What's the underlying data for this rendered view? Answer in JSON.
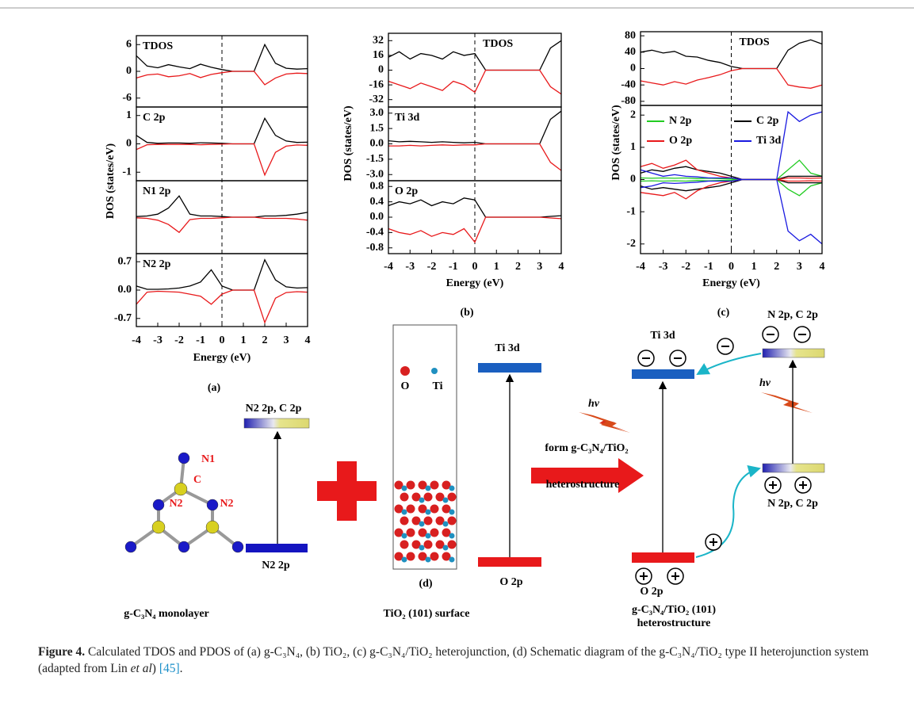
{
  "chart_data": [
    {
      "type": "line",
      "label": "(a)",
      "xlabel": "Energy (eV)",
      "ylabel": "DOS (states/eV)",
      "x": [
        -4,
        -3.5,
        -3,
        -2.5,
        -2,
        -1.5,
        -1,
        -0.5,
        0,
        0.5,
        1,
        1.5,
        2,
        2.5,
        3,
        3.5,
        4
      ],
      "xlim": [
        -4,
        4
      ],
      "xticks": [
        -4,
        -3,
        -2,
        -1,
        0,
        1,
        2,
        3,
        4
      ],
      "vline": 0,
      "panels": [
        {
          "title": "TDOS",
          "ylim": [
            -8,
            8
          ],
          "yticks": [
            6,
            0,
            -6
          ],
          "series": [
            {
              "color": "#000000",
              "values": [
                3.5,
                1.2,
                0.8,
                1.5,
                1.0,
                0.6,
                1.6,
                0.9,
                0.4,
                0,
                0,
                0,
                6,
                1.8,
                0.7,
                0.5,
                0.6
              ]
            },
            {
              "color": "#e8191b",
              "values": [
                -1.5,
                -0.8,
                -0.6,
                -1.2,
                -1.0,
                -0.5,
                -1.4,
                -0.7,
                -0.3,
                0,
                0,
                0,
                -3,
                -1.5,
                -0.6,
                -0.4,
                -0.5
              ]
            }
          ]
        },
        {
          "title": "C 2p",
          "ylim": [
            -1.3,
            1.3
          ],
          "yticks": [
            1,
            0,
            -1
          ],
          "series": [
            {
              "color": "#000000",
              "values": [
                0.3,
                0.05,
                0.02,
                0.03,
                0.03,
                0.02,
                0.04,
                0.03,
                0.02,
                0,
                0,
                0,
                0.9,
                0.3,
                0.1,
                0.05,
                0.06
              ]
            },
            {
              "color": "#e8191b",
              "values": [
                -0.2,
                -0.03,
                -0.02,
                -0.02,
                -0.02,
                -0.02,
                -0.03,
                -0.02,
                -0.01,
                0,
                0,
                0,
                -1.1,
                -0.3,
                -0.08,
                -0.04,
                -0.05
              ]
            }
          ]
        },
        {
          "title": "N1 2p",
          "ylim": [
            -0.6,
            0.6
          ],
          "yticks": [],
          "series": [
            {
              "color": "#000000",
              "values": [
                0.01,
                0.02,
                0.05,
                0.15,
                0.35,
                0.05,
                0.02,
                0.02,
                0.01,
                0,
                0,
                0,
                0.02,
                0.02,
                0.03,
                0.05,
                0.08
              ]
            },
            {
              "color": "#e8191b",
              "values": [
                -0.01,
                -0.02,
                -0.05,
                -0.12,
                -0.25,
                -0.04,
                -0.02,
                -0.02,
                -0.01,
                0,
                0,
                0,
                -0.02,
                -0.02,
                -0.02,
                -0.03,
                -0.05
              ]
            }
          ]
        },
        {
          "title": "N2 2p",
          "ylim": [
            -0.9,
            0.9
          ],
          "yticks": [
            0.7,
            {
              "value": 0,
              "label": "0.0"
            },
            -0.7
          ],
          "series": [
            {
              "color": "#000000",
              "values": [
                0.1,
                0.02,
                0.02,
                0.03,
                0.05,
                0.1,
                0.2,
                0.5,
                0.1,
                0,
                0,
                0,
                0.75,
                0.25,
                0.08,
                0.05,
                0.06
              ]
            },
            {
              "color": "#e8191b",
              "values": [
                -0.35,
                -0.05,
                -0.03,
                -0.04,
                -0.05,
                -0.1,
                -0.15,
                -0.35,
                -0.1,
                0,
                0,
                0,
                -0.8,
                -0.2,
                -0.06,
                -0.04,
                -0.05
              ]
            }
          ]
        }
      ]
    },
    {
      "type": "line",
      "label": "(b)",
      "xlabel": "Energy (eV)",
      "ylabel": "DOS (states/eV)",
      "x": [
        -4,
        -3.5,
        -3,
        -2.5,
        -2,
        -1.5,
        -1,
        -0.5,
        0,
        0.5,
        1,
        1.5,
        2,
        2.5,
        3,
        3.5,
        4
      ],
      "xlim": [
        -4,
        4
      ],
      "xticks": [
        -4,
        -3,
        -2,
        -1,
        0,
        1,
        2,
        3,
        4
      ],
      "vline": 0,
      "panels": [
        {
          "title": "TDOS",
          "ylim": [
            -40,
            40
          ],
          "yticks": [
            32,
            16,
            0,
            -16,
            -32
          ],
          "series": [
            {
              "color": "#000000",
              "values": [
                14,
                20,
                12,
                18,
                16,
                12,
                20,
                16,
                18,
                0,
                0,
                0,
                0,
                0,
                0,
                24,
                32
              ]
            },
            {
              "color": "#e8191b",
              "values": [
                -12,
                -16,
                -20,
                -14,
                -18,
                -22,
                -12,
                -16,
                -24,
                0,
                0,
                0,
                0,
                0,
                0,
                -18,
                -26
              ]
            }
          ]
        },
        {
          "title": "Ti 3d",
          "ylim": [
            -3.6,
            3.6
          ],
          "yticks": [
            {
              "value": 3,
              "label": "3.0"
            },
            1.5,
            {
              "value": 0,
              "label": "0.0"
            },
            -1.5,
            {
              "value": -3,
              "label": "-3.0"
            }
          ],
          "series": [
            {
              "color": "#000000",
              "values": [
                0.3,
                0.2,
                0.25,
                0.2,
                0.15,
                0.2,
                0.15,
                0.1,
                0.15,
                0,
                0,
                0,
                0,
                0,
                0,
                2.4,
                3.2
              ]
            },
            {
              "color": "#e8191b",
              "values": [
                -0.2,
                -0.2,
                -0.15,
                -0.2,
                -0.15,
                -0.1,
                -0.15,
                -0.1,
                -0.1,
                0,
                0,
                0,
                0,
                0,
                0,
                -1.8,
                -2.6
              ]
            }
          ]
        },
        {
          "title": "O 2p",
          "ylim": [
            -0.95,
            0.95
          ],
          "yticks": [
            0.8,
            0.4,
            {
              "value": 0,
              "label": "0.0"
            },
            -0.4,
            -0.8
          ],
          "series": [
            {
              "color": "#000000",
              "values": [
                0.3,
                0.4,
                0.35,
                0.45,
                0.3,
                0.4,
                0.35,
                0.5,
                0.45,
                0,
                0,
                0,
                0,
                0,
                0,
                0.02,
                0.04
              ]
            },
            {
              "color": "#e8191b",
              "values": [
                -0.3,
                -0.4,
                -0.45,
                -0.35,
                -0.5,
                -0.4,
                -0.45,
                -0.3,
                -0.65,
                0,
                0,
                0,
                0,
                0,
                0,
                -0.02,
                -0.04
              ]
            }
          ]
        }
      ]
    },
    {
      "type": "line",
      "label": "(c)",
      "xlabel": "Energy (eV)",
      "ylabel": "DOS (states/eV)",
      "x": [
        -4,
        -3.5,
        -3,
        -2.5,
        -2,
        -1.5,
        -1,
        -0.5,
        0,
        0.5,
        1,
        1.5,
        2,
        2.5,
        3,
        3.5,
        4
      ],
      "xlim": [
        -4,
        4
      ],
      "xticks": [
        -4,
        -3,
        -2,
        -1,
        0,
        1,
        2,
        3,
        4
      ],
      "vline": 0,
      "panels": [
        {
          "title": "TDOS",
          "ylim": [
            -90,
            90
          ],
          "yticks": [
            80,
            40,
            0,
            -40,
            -80
          ],
          "series": [
            {
              "color": "#000000",
              "values": [
                40,
                45,
                38,
                42,
                30,
                28,
                20,
                15,
                5,
                0,
                0,
                0,
                0,
                45,
                62,
                70,
                60
              ]
            },
            {
              "color": "#e8191b",
              "values": [
                -30,
                -35,
                -40,
                -32,
                -38,
                -28,
                -22,
                -15,
                -5,
                0,
                0,
                0,
                0,
                -40,
                -45,
                -48,
                -40
              ]
            }
          ]
        },
        {
          "ylim": [
            -2.3,
            2.3
          ],
          "yticks": [
            2,
            1,
            0,
            -1,
            -2
          ],
          "series": [
            {
              "name": "N 2p",
              "color": "#22cc22",
              "values": [
                0.05,
                0.04,
                0.05,
                0.04,
                0.05,
                0.03,
                0.04,
                0.03,
                0.02,
                0,
                0,
                0,
                0,
                0.3,
                0.6,
                0.2,
                0.1
              ]
            },
            {
              "color": "#22cc22",
              "values": [
                -0.05,
                -0.04,
                -0.05,
                -0.04,
                -0.05,
                -0.03,
                -0.04,
                -0.03,
                -0.02,
                0,
                0,
                0,
                0,
                -0.3,
                -0.5,
                -0.2,
                -0.1
              ]
            },
            {
              "name": "C 2p",
              "color": "#000000",
              "values": [
                0.2,
                0.3,
                0.25,
                0.35,
                0.4,
                0.3,
                0.25,
                0.2,
                0.1,
                0,
                0,
                0,
                0,
                0.1,
                0.1,
                0.1,
                0.1
              ]
            },
            {
              "color": "#000000",
              "values": [
                -0.2,
                -0.3,
                -0.25,
                -0.3,
                -0.35,
                -0.3,
                -0.25,
                -0.2,
                -0.1,
                0,
                0,
                0,
                0,
                -0.1,
                -0.1,
                -0.1,
                -0.1
              ]
            },
            {
              "name": "O 2p",
              "color": "#e8191b",
              "values": [
                0.4,
                0.5,
                0.35,
                0.45,
                0.6,
                0.3,
                0.2,
                0.1,
                0.05,
                0,
                0,
                0,
                0,
                0.05,
                0.05,
                0.04,
                0.05
              ]
            },
            {
              "color": "#e8191b",
              "values": [
                -0.4,
                -0.45,
                -0.5,
                -0.4,
                -0.6,
                -0.35,
                -0.2,
                -0.1,
                -0.05,
                0,
                0,
                0,
                0,
                -0.05,
                -0.05,
                -0.04,
                -0.05
              ]
            },
            {
              "name": "Ti 3d",
              "color": "#1a1ae0",
              "values": [
                0.3,
                0.2,
                0.1,
                0.15,
                0.1,
                0.08,
                0.05,
                0.05,
                0.05,
                0,
                0,
                0,
                0,
                2.1,
                1.8,
                2.0,
                2.1
              ]
            },
            {
              "color": "#1a1ae0",
              "values": [
                -0.25,
                -0.2,
                -0.1,
                -0.12,
                -0.1,
                -0.08,
                -0.05,
                -0.05,
                -0.05,
                0,
                0,
                0,
                0,
                -1.6,
                -1.9,
                -1.7,
                -2.0
              ]
            }
          ]
        }
      ]
    }
  ],
  "diagram": {
    "left": {
      "atoms": [
        "N1",
        "C",
        "N2",
        "N2"
      ],
      "top": "N2 2p, C 2p",
      "bottom": "N2 2p",
      "caption": "g-C₃N₄ monolayer"
    },
    "middle": {
      "legend": [
        "O",
        "Ti"
      ],
      "top": "Ti 3d",
      "bottom": "O 2p",
      "label": "(d)",
      "caption": "TiO₂ (101) surface"
    },
    "arrow": [
      "form g-C₃N₄/TiO₂",
      "heterostructure"
    ],
    "right": {
      "light": [
        "hv",
        "hv"
      ],
      "ti": "Ti 3d",
      "cb": "N 2p, C 2p",
      "vb": "N 2p, C 2p",
      "o": "O 2p",
      "caption": [
        "g-C₃N₄/TiO₂ (101)",
        "heterostructure"
      ]
    }
  },
  "caption": {
    "label": "Figure 4.",
    "text": " Calculated TDOS and PDOS of (a) g-C₃N₄, (b) TiO₂, (c) g-C₃N₄/TiO₂ heterojunction, (d) Schematic diagram of the g-C₃N₄/TiO₂ type II heterojunction system (adapted from Lin ",
    "italic": "et al",
    "close": ") ",
    "ref": "[45]",
    "end": "."
  }
}
